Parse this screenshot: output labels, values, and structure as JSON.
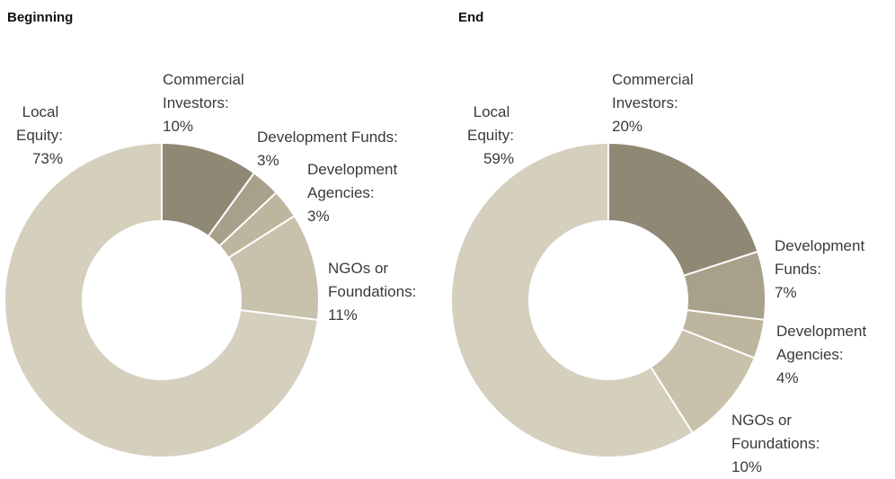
{
  "chart_data": [
    {
      "type": "donut",
      "title": "Beginning",
      "categories": [
        "Commercial Investors:",
        "Development Funds:",
        "Development Agencies:",
        "NGOs or Foundations:",
        "Local Equity:"
      ],
      "values": [
        10,
        3,
        3,
        11,
        73
      ],
      "value_labels": [
        "10%",
        "3%",
        "3%",
        "11%",
        "73%"
      ],
      "colors": [
        "#8f8874",
        "#a7a08b",
        "#bdb59d",
        "#c8c1ab",
        "#d5cfbd"
      ]
    },
    {
      "type": "donut",
      "title": "End",
      "categories": [
        "Commercial Investors:",
        "Development Funds:",
        "Development Agencies:",
        "NGOs or Foundations:",
        "Local Equity:"
      ],
      "values": [
        20,
        7,
        4,
        10,
        59
      ],
      "value_labels": [
        "20%",
        "7%",
        "4%",
        "10%",
        "59%"
      ],
      "colors": [
        "#8f8874",
        "#a7a08b",
        "#bdb59d",
        "#c8c1ab",
        "#d5cfbd"
      ]
    }
  ]
}
